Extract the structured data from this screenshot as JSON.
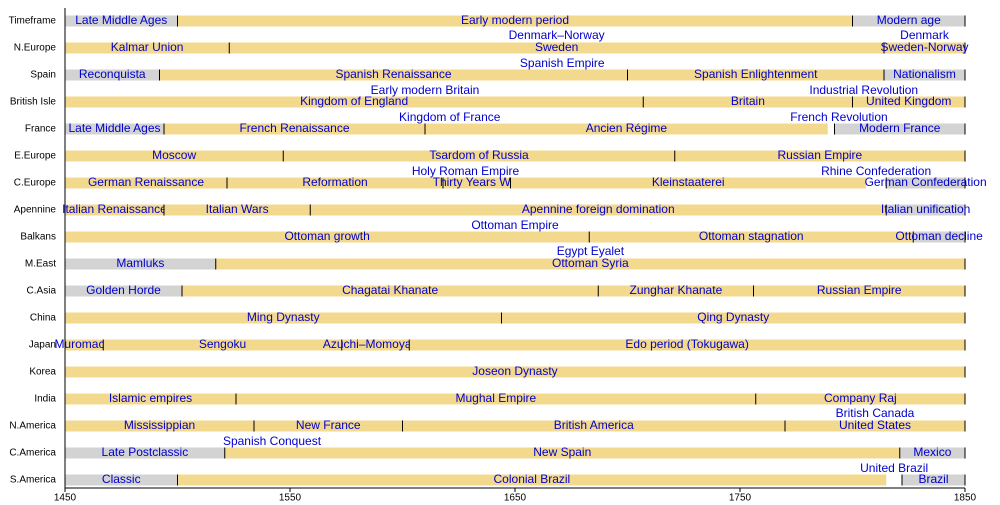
{
  "chart_data": {
    "type": "timeline",
    "xlim": [
      1450,
      1850
    ],
    "xticks": [
      1450,
      1550,
      1650,
      1750,
      1850
    ],
    "rows": [
      {
        "name": "Timeframe",
        "segments": [
          {
            "labels": [
              "Late Middle Ages"
            ],
            "start": 1450,
            "end": 1500,
            "color": "#d3d3d3"
          },
          {
            "labels": [
              "Early modern period"
            ],
            "start": 1500,
            "end": 1800,
            "color": "#f3d98e",
            "label_color": "#000000"
          },
          {
            "labels": [
              "Modern age"
            ],
            "start": 1800,
            "end": 1850,
            "color": "#d3d3d3"
          }
        ],
        "spans": []
      },
      {
        "name": "N.Europe",
        "segments": [
          {
            "labels": [
              "Kalmar Union"
            ],
            "start": 1450,
            "end": 1523,
            "color": "#f3d98e"
          },
          {
            "labels": [
              "Denmark–Norway",
              "Sweden"
            ],
            "start": 1523,
            "end": 1814,
            "color": "#f3d98e"
          },
          {
            "labels": [
              "Denmark",
              "Sweden-Norway"
            ],
            "start": 1814,
            "end": 1850,
            "color": "#f3d98e"
          }
        ],
        "spans": []
      },
      {
        "name": "Spain",
        "segments": [
          {
            "labels": [
              "Reconquista"
            ],
            "start": 1450,
            "end": 1492,
            "color": "#d3d3d3"
          },
          {
            "labels": [
              "Spanish Renaissance"
            ],
            "start": 1492,
            "end": 1700,
            "color": "#f3d98e"
          },
          {
            "labels": [
              "Spanish Enlightenment"
            ],
            "start": 1700,
            "end": 1814,
            "color": "#f3d98e"
          },
          {
            "labels": [
              "Nationalism"
            ],
            "start": 1814,
            "end": 1850,
            "color": "#d3d3d3"
          }
        ],
        "spans": [
          {
            "label": "Spanish Empire",
            "start": 1492,
            "end": 1850
          }
        ]
      },
      {
        "name": "British Isle",
        "segments": [
          {
            "labels": [
              "Kingdom of England"
            ],
            "start": 1450,
            "end": 1707,
            "color": "#f3d98e"
          },
          {
            "labels": [
              "Britain"
            ],
            "start": 1707,
            "end": 1800,
            "color": "#f3d98e"
          },
          {
            "labels": [
              "United Kingdom"
            ],
            "start": 1800,
            "end": 1850,
            "color": "#f3d98e"
          }
        ],
        "spans": [
          {
            "label": "Early modern Britain",
            "start": 1450,
            "end": 1770
          },
          {
            "label": "Industrial Revolution",
            "start": 1760,
            "end": 1850
          }
        ]
      },
      {
        "name": "France",
        "segments": [
          {
            "labels": [
              "Late Middle Ages"
            ],
            "start": 1450,
            "end": 1494,
            "color": "#d3d3d3"
          },
          {
            "labels": [
              "French Renaissance"
            ],
            "start": 1494,
            "end": 1610,
            "color": "#f3d98e"
          },
          {
            "labels": [
              "Ancien Régime"
            ],
            "start": 1610,
            "end": 1789,
            "color": "#f3d98e"
          },
          {
            "labels": [
              "Modern France"
            ],
            "start": 1792,
            "end": 1850,
            "color": "#d3d3d3"
          }
        ],
        "spans": [
          {
            "label": "Kingdom of France",
            "start": 1450,
            "end": 1792
          },
          {
            "label": "French Revolution",
            "start": 1789,
            "end": 1799
          }
        ]
      },
      {
        "name": "E.Europe",
        "segments": [
          {
            "labels": [
              "Moscow"
            ],
            "start": 1450,
            "end": 1547,
            "color": "#f3d98e"
          },
          {
            "labels": [
              "Tsardom of Russia"
            ],
            "start": 1547,
            "end": 1721,
            "color": "#f3d98e"
          },
          {
            "labels": [
              "Russian Empire"
            ],
            "start": 1721,
            "end": 1850,
            "color": "#f3d98e"
          }
        ],
        "spans": []
      },
      {
        "name": "C.Europe",
        "segments": [
          {
            "labels": [
              "German Renaissance"
            ],
            "start": 1450,
            "end": 1522,
            "color": "#f3d98e"
          },
          {
            "labels": [
              "Reformation"
            ],
            "start": 1522,
            "end": 1618,
            "color": "#f3d98e"
          },
          {
            "labels": [
              "Thirty Years War"
            ],
            "start": 1618,
            "end": 1648,
            "color": "#f3d98e"
          },
          {
            "labels": [
              "Kleinstaaterei"
            ],
            "start": 1648,
            "end": 1806,
            "color": "#f3d98e"
          },
          {
            "labels": [
              "German Confederation"
            ],
            "start": 1815,
            "end": 1850,
            "color": "#d3d3d3"
          }
        ],
        "spans": [
          {
            "label": "Holy Roman Empire",
            "start": 1450,
            "end": 1806
          },
          {
            "label": "Rhine Confederation",
            "start": 1806,
            "end": 1815
          }
        ]
      },
      {
        "name": "Apennine",
        "segments": [
          {
            "labels": [
              "Italian Renaissance"
            ],
            "start": 1450,
            "end": 1494,
            "color": "#f3d98e"
          },
          {
            "labels": [
              "Italian Wars"
            ],
            "start": 1494,
            "end": 1559,
            "color": "#f3d98e"
          },
          {
            "labels": [
              "Apennine foreign domination"
            ],
            "start": 1559,
            "end": 1815,
            "color": "#f3d98e"
          },
          {
            "labels": [
              "Italian unification"
            ],
            "start": 1815,
            "end": 1850,
            "color": "#d3d3d3"
          }
        ],
        "spans": []
      },
      {
        "name": "Balkans",
        "segments": [
          {
            "labels": [
              "Ottoman growth"
            ],
            "start": 1450,
            "end": 1683,
            "color": "#f3d98e"
          },
          {
            "labels": [
              "Ottoman stagnation"
            ],
            "start": 1683,
            "end": 1827,
            "color": "#f3d98e"
          },
          {
            "labels": [
              "Ottoman decline"
            ],
            "start": 1827,
            "end": 1850,
            "color": "#d3d3d3"
          }
        ],
        "spans": [
          {
            "label": "Ottoman Empire",
            "start": 1450,
            "end": 1850
          }
        ]
      },
      {
        "name": "M.East",
        "segments": [
          {
            "labels": [
              "Mamluks"
            ],
            "start": 1450,
            "end": 1517,
            "color": "#d3d3d3"
          },
          {
            "labels": [
              "Egypt Eyalet",
              "Ottoman Syria"
            ],
            "start": 1517,
            "end": 1850,
            "color": "#f3d98e"
          }
        ],
        "spans": []
      },
      {
        "name": "C.Asia",
        "segments": [
          {
            "labels": [
              "Golden Horde"
            ],
            "start": 1450,
            "end": 1502,
            "color": "#d3d3d3"
          },
          {
            "labels": [
              "Chagatai Khanate"
            ],
            "start": 1502,
            "end": 1687,
            "color": "#f3d98e"
          },
          {
            "labels": [
              "Zunghar Khanate"
            ],
            "start": 1687,
            "end": 1756,
            "color": "#f3d98e"
          },
          {
            "labels": [
              "Russian Empire"
            ],
            "start": 1756,
            "end": 1850,
            "color": "#f3d98e"
          }
        ],
        "spans": []
      },
      {
        "name": "China",
        "segments": [
          {
            "labels": [
              "Ming Dynasty"
            ],
            "start": 1450,
            "end": 1644,
            "color": "#f3d98e"
          },
          {
            "labels": [
              "Qing Dynasty"
            ],
            "start": 1644,
            "end": 1850,
            "color": "#f3d98e"
          }
        ],
        "spans": []
      },
      {
        "name": "Japan",
        "segments": [
          {
            "labels": [
              "Muromachi"
            ],
            "start": 1450,
            "end": 1467,
            "color": "#f3d98e"
          },
          {
            "labels": [
              "Sengoku"
            ],
            "start": 1467,
            "end": 1573,
            "color": "#f3d98e"
          },
          {
            "labels": [
              "Azuchi–Momoyama"
            ],
            "start": 1573,
            "end": 1603,
            "color": "#f3d98e"
          },
          {
            "labels": [
              "Edo period (Tokugawa)"
            ],
            "start": 1603,
            "end": 1850,
            "color": "#f3d98e"
          }
        ],
        "spans": []
      },
      {
        "name": "Korea",
        "segments": [
          {
            "labels": [
              "Joseon Dynasty"
            ],
            "start": 1450,
            "end": 1850,
            "color": "#f3d98e"
          }
        ],
        "spans": []
      },
      {
        "name": "India",
        "segments": [
          {
            "labels": [
              "Islamic empires"
            ],
            "start": 1450,
            "end": 1526,
            "color": "#f3d98e"
          },
          {
            "labels": [
              "Mughal Empire"
            ],
            "start": 1526,
            "end": 1757,
            "color": "#f3d98e"
          },
          {
            "labels": [
              "Company Raj"
            ],
            "start": 1757,
            "end": 1850,
            "color": "#f3d98e"
          }
        ],
        "spans": []
      },
      {
        "name": "N.America",
        "segments": [
          {
            "labels": [
              "Mississippian"
            ],
            "start": 1450,
            "end": 1534,
            "color": "#f3d98e"
          },
          {
            "labels": [
              "New France"
            ],
            "start": 1534,
            "end": 1600,
            "color": "#f3d98e"
          },
          {
            "labels": [
              "British America"
            ],
            "start": 1600,
            "end": 1770,
            "color": "#f3d98e"
          },
          {
            "labels": [
              "British Canada",
              "United States"
            ],
            "start": 1770,
            "end": 1850,
            "color": "#f3d98e"
          }
        ],
        "spans": []
      },
      {
        "name": "C.America",
        "segments": [
          {
            "labels": [
              "Late Postclassic"
            ],
            "start": 1450,
            "end": 1521,
            "color": "#d3d3d3",
            "label_color": "#000000"
          },
          {
            "labels": [
              "New Spain"
            ],
            "start": 1521,
            "end": 1821,
            "color": "#f3d98e"
          },
          {
            "labels": [
              "Mexico"
            ],
            "start": 1821,
            "end": 1850,
            "color": "#d3d3d3"
          }
        ],
        "spans": [
          {
            "label": "Spanish Conquest",
            "start": 1519,
            "end": 1565
          }
        ]
      },
      {
        "name": "S.America",
        "segments": [
          {
            "labels": [
              "Classic"
            ],
            "start": 1450,
            "end": 1500,
            "color": "#d3d3d3",
            "label_color": "#000000"
          },
          {
            "labels": [
              "Colonial Brazil"
            ],
            "start": 1500,
            "end": 1815,
            "color": "#f3d98e"
          },
          {
            "labels": [
              "Brazil"
            ],
            "start": 1822,
            "end": 1850,
            "color": "#d3d3d3"
          }
        ],
        "spans": [
          {
            "label": "United Brazil",
            "start": 1815,
            "end": 1822
          }
        ]
      }
    ]
  }
}
